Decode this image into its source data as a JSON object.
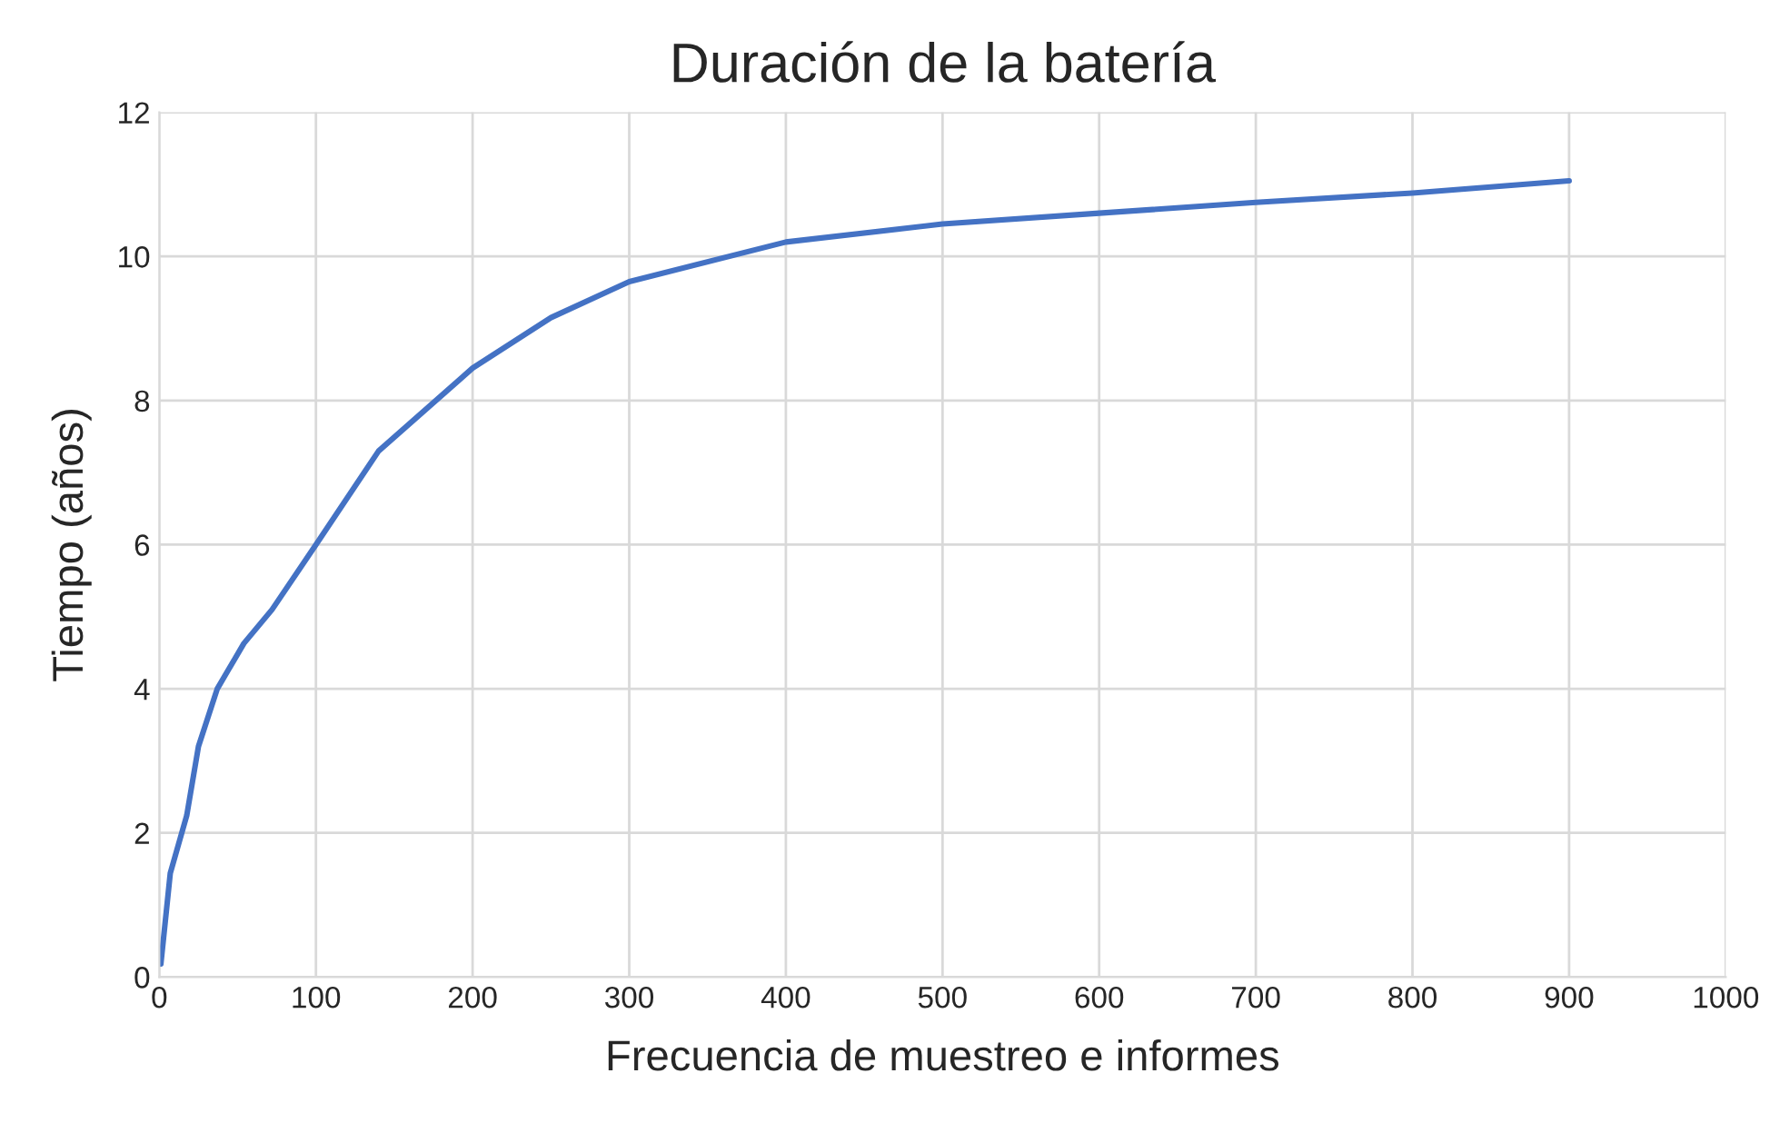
{
  "chart_data": {
    "type": "line",
    "title": "Duración de la batería",
    "xlabel": "Frecuencia de muestreo e informes",
    "ylabel": "Tiempo (años)",
    "series": [
      {
        "color": "#4472c4",
        "x": [
          1,
          7,
          17.5,
          25,
          37,
          54,
          72,
          100,
          140,
          200,
          250,
          300,
          400,
          500,
          600,
          700,
          800,
          900
        ],
        "values": [
          0.18,
          1.44,
          2.24,
          3.2,
          4.0,
          4.63,
          5.1,
          6.0,
          7.3,
          8.45,
          9.15,
          9.65,
          10.2,
          10.45,
          10.6,
          10.75,
          10.88,
          11.05
        ]
      }
    ],
    "xlim": [
      0,
      1000
    ],
    "xticks": [
      0,
      100,
      200,
      300,
      400,
      500,
      600,
      700,
      800,
      900,
      1000
    ],
    "ylim": [
      0,
      12
    ],
    "yticks": [
      0,
      2,
      4,
      6,
      8,
      10,
      12
    ],
    "grid": true,
    "legend": false,
    "marker": "none",
    "line_style": "solid"
  }
}
